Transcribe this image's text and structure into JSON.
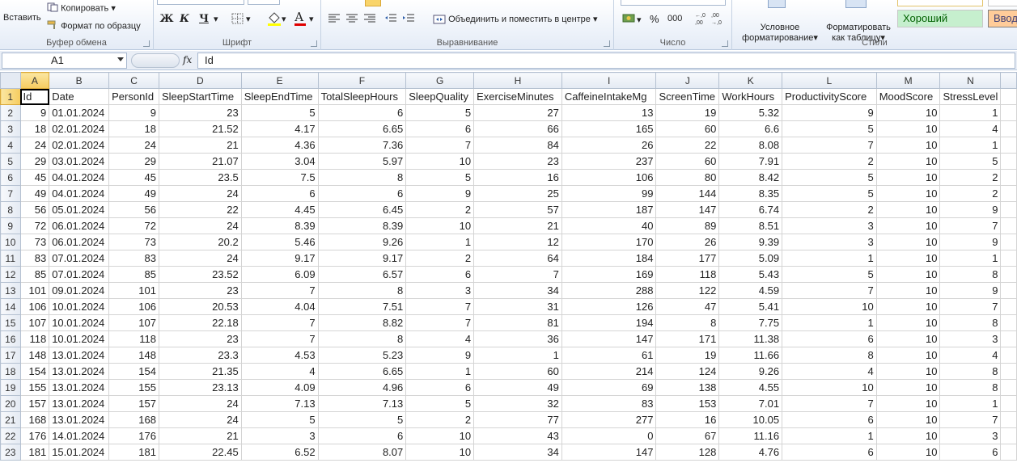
{
  "ribbon": {
    "clipboard": {
      "label": "Буфер обмена",
      "paste": "Вставить",
      "copy": "Копировать",
      "format_painter": "Формат по образцу"
    },
    "font": {
      "label": "Шрифт",
      "bold": "Ж",
      "italic": "К",
      "underline": "Ч",
      "font_color_letter": "А"
    },
    "alignment": {
      "label": "Выравнивание",
      "merge_center": "Объединить и поместить в центре"
    },
    "number": {
      "label": "Число",
      "percent": "%",
      "thousands": "000",
      "inc_dec": ",0\n,00",
      "dec_dec": ",00\n→,0"
    },
    "styles": {
      "label": "Стили",
      "conditional": "Условное\nформатирование",
      "format_table": "Форматировать\nкак таблицу",
      "good": "Хороший",
      "input": "Ввод"
    }
  },
  "formula_bar": {
    "name_box": "A1",
    "fx": "fx",
    "value": "Id"
  },
  "columns": [
    "A",
    "B",
    "C",
    "D",
    "E",
    "F",
    "G",
    "H",
    "I",
    "J",
    "K",
    "L",
    "M",
    "N"
  ],
  "headers": [
    "Id",
    "Date",
    "PersonId",
    "SleepStartTime",
    "SleepEndTime",
    "TotalSleepHours",
    "SleepQuality",
    "ExerciseMinutes",
    "CaffeineIntakeMg",
    "ScreenTime",
    "WorkHours",
    "ProductivityScore",
    "MoodScore",
    "StressLevel"
  ],
  "rows": [
    [
      "9",
      "01.01.2024",
      "9",
      "23",
      "5",
      "6",
      "5",
      "27",
      "13",
      "19",
      "5.32",
      "9",
      "10",
      "1"
    ],
    [
      "18",
      "02.01.2024",
      "18",
      "21.52",
      "4.17",
      "6.65",
      "6",
      "66",
      "165",
      "60",
      "6.6",
      "5",
      "10",
      "4"
    ],
    [
      "24",
      "02.01.2024",
      "24",
      "21",
      "4.36",
      "7.36",
      "7",
      "84",
      "26",
      "22",
      "8.08",
      "7",
      "10",
      "1"
    ],
    [
      "29",
      "03.01.2024",
      "29",
      "21.07",
      "3.04",
      "5.97",
      "10",
      "23",
      "237",
      "60",
      "7.91",
      "2",
      "10",
      "5"
    ],
    [
      "45",
      "04.01.2024",
      "45",
      "23.5",
      "7.5",
      "8",
      "5",
      "16",
      "106",
      "80",
      "8.42",
      "5",
      "10",
      "2"
    ],
    [
      "49",
      "04.01.2024",
      "49",
      "24",
      "6",
      "6",
      "9",
      "25",
      "99",
      "144",
      "8.35",
      "5",
      "10",
      "2"
    ],
    [
      "56",
      "05.01.2024",
      "56",
      "22",
      "4.45",
      "6.45",
      "2",
      "57",
      "187",
      "147",
      "6.74",
      "2",
      "10",
      "9"
    ],
    [
      "72",
      "06.01.2024",
      "72",
      "24",
      "8.39",
      "8.39",
      "10",
      "21",
      "40",
      "89",
      "8.51",
      "3",
      "10",
      "7"
    ],
    [
      "73",
      "06.01.2024",
      "73",
      "20.2",
      "5.46",
      "9.26",
      "1",
      "12",
      "170",
      "26",
      "9.39",
      "3",
      "10",
      "9"
    ],
    [
      "83",
      "07.01.2024",
      "83",
      "24",
      "9.17",
      "9.17",
      "2",
      "64",
      "184",
      "177",
      "5.09",
      "1",
      "10",
      "1"
    ],
    [
      "85",
      "07.01.2024",
      "85",
      "23.52",
      "6.09",
      "6.57",
      "6",
      "7",
      "169",
      "118",
      "5.43",
      "5",
      "10",
      "8"
    ],
    [
      "101",
      "09.01.2024",
      "101",
      "23",
      "7",
      "8",
      "3",
      "34",
      "288",
      "122",
      "4.59",
      "7",
      "10",
      "9"
    ],
    [
      "106",
      "10.01.2024",
      "106",
      "20.53",
      "4.04",
      "7.51",
      "7",
      "31",
      "126",
      "47",
      "5.41",
      "10",
      "10",
      "7"
    ],
    [
      "107",
      "10.01.2024",
      "107",
      "22.18",
      "7",
      "8.82",
      "7",
      "81",
      "194",
      "8",
      "7.75",
      "1",
      "10",
      "8"
    ],
    [
      "118",
      "10.01.2024",
      "118",
      "23",
      "7",
      "8",
      "4",
      "36",
      "147",
      "171",
      "11.38",
      "6",
      "10",
      "3"
    ],
    [
      "148",
      "13.01.2024",
      "148",
      "23.3",
      "4.53",
      "5.23",
      "9",
      "1",
      "61",
      "19",
      "11.66",
      "8",
      "10",
      "4"
    ],
    [
      "154",
      "13.01.2024",
      "154",
      "21.35",
      "4",
      "6.65",
      "1",
      "60",
      "214",
      "124",
      "9.26",
      "4",
      "10",
      "8"
    ],
    [
      "155",
      "13.01.2024",
      "155",
      "23.13",
      "4.09",
      "4.96",
      "6",
      "49",
      "69",
      "138",
      "4.55",
      "10",
      "10",
      "8"
    ],
    [
      "157",
      "13.01.2024",
      "157",
      "24",
      "7.13",
      "7.13",
      "5",
      "32",
      "83",
      "153",
      "7.01",
      "7",
      "10",
      "1"
    ],
    [
      "168",
      "13.01.2024",
      "168",
      "24",
      "5",
      "5",
      "2",
      "77",
      "277",
      "16",
      "10.05",
      "6",
      "10",
      "7"
    ],
    [
      "176",
      "14.01.2024",
      "176",
      "21",
      "3",
      "6",
      "10",
      "43",
      "0",
      "67",
      "11.16",
      "1",
      "10",
      "3"
    ],
    [
      "181",
      "15.01.2024",
      "181",
      "22.45",
      "6.52",
      "8.07",
      "10",
      "34",
      "147",
      "128",
      "4.76",
      "6",
      "10",
      "6"
    ]
  ]
}
